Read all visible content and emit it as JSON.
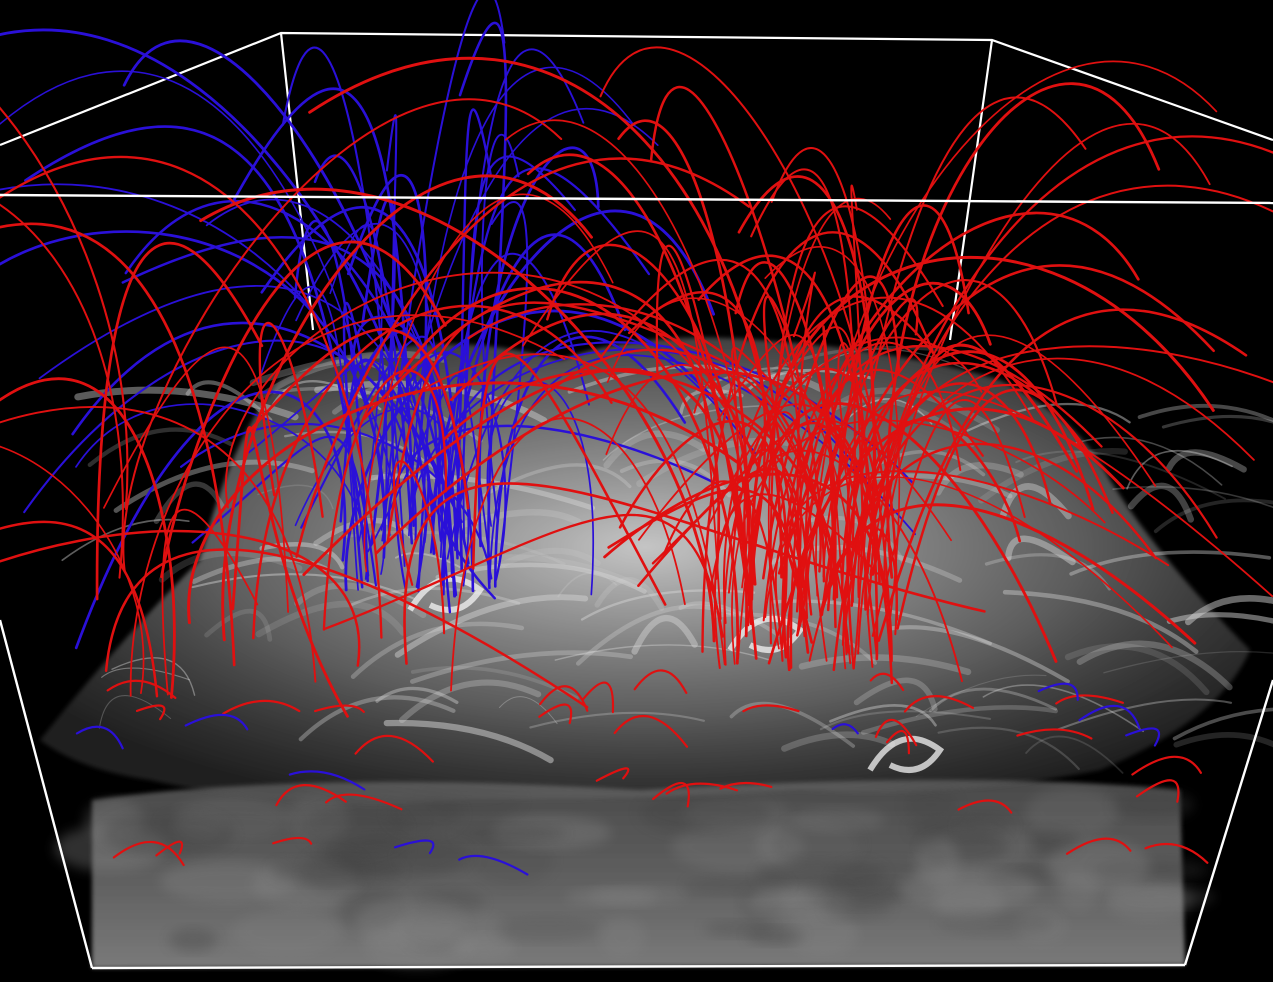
{
  "scene": {
    "background_color": "#000000",
    "box_edge_color": "#ffffff",
    "positive_field_line_color": "#e01010",
    "negative_field_line_color": "#2a10d8",
    "plasma_color": "#d8d8d8",
    "base_layer_color": "#6a6a6a",
    "positive_line_count": 130,
    "negative_line_count": 60
  }
}
